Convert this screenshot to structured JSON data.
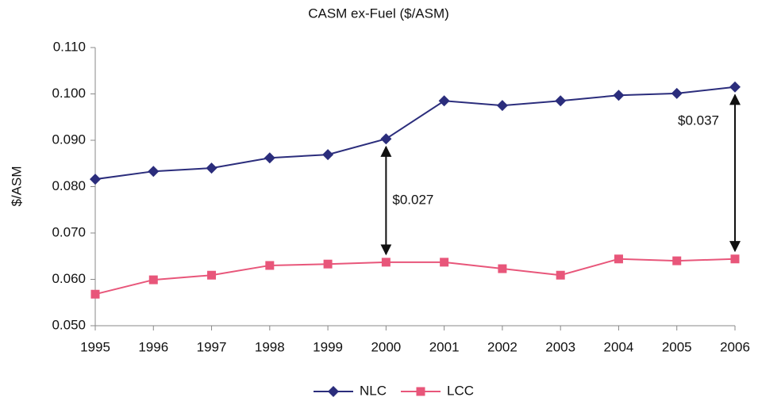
{
  "chart_data": {
    "type": "line",
    "title": "CASM ex-Fuel ($/ASM)",
    "y_label": "$/ASM",
    "x": [
      1995,
      1996,
      1997,
      1998,
      1999,
      2000,
      2001,
      2002,
      2003,
      2004,
      2005,
      2006
    ],
    "xlim": [
      1995,
      2006
    ],
    "xticks": [
      1995,
      1996,
      1997,
      1998,
      1999,
      2000,
      2001,
      2002,
      2003,
      2004,
      2005,
      2006
    ],
    "ylim": [
      0.05,
      0.11
    ],
    "yticks": [
      {
        "value": 0.05,
        "label": "0.050"
      },
      {
        "value": 0.06,
        "label": "0.060"
      },
      {
        "value": 0.07,
        "label": "0.070"
      },
      {
        "value": 0.08,
        "label": "0.080"
      },
      {
        "value": 0.09,
        "label": "0.090"
      },
      {
        "value": 0.1,
        "label": "0.100"
      },
      {
        "value": 0.11,
        "label": "0.110"
      }
    ],
    "series": [
      {
        "name": "NLC",
        "color": "#2b2d7c",
        "marker": "diamond",
        "values": [
          0.0816,
          0.0833,
          0.084,
          0.0862,
          0.0869,
          0.0903,
          0.0985,
          0.0975,
          0.0985,
          0.0997,
          0.1001,
          0.1015
        ]
      },
      {
        "name": "LCC",
        "color": "#e8567a",
        "marker": "square",
        "values": [
          0.0568,
          0.0599,
          0.0609,
          0.063,
          0.0633,
          0.0637,
          0.0637,
          0.0623,
          0.0609,
          0.0644,
          0.064,
          0.0644
        ]
      }
    ],
    "annotations": [
      {
        "text": "$0.027",
        "x": 2000
      },
      {
        "text": "$0.037",
        "x": 2006
      }
    ],
    "legend": "bottom"
  }
}
